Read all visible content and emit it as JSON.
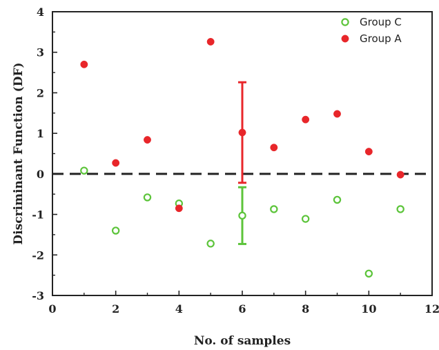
{
  "chart_data": {
    "type": "scatter",
    "title": "",
    "xlabel": "No. of samples",
    "ylabel": "Discriminant Function (DF)",
    "xlim": [
      0,
      12
    ],
    "ylim": [
      -3,
      4
    ],
    "x_ticks": [
      "0",
      "2",
      "4",
      "6",
      "8",
      "10",
      "12"
    ],
    "y_ticks": [
      "-3",
      "-2",
      "-1",
      "0",
      "1",
      "2",
      "3",
      "4"
    ],
    "grid": false,
    "legend_position": "top-right",
    "reference_line": {
      "y": 0,
      "style": "dashed",
      "color": "#222222"
    },
    "series": [
      {
        "name": "Group C",
        "marker": "open-circle",
        "color": "#5cc43a",
        "x": [
          1,
          2,
          3,
          4,
          5,
          6,
          7,
          8,
          9,
          10,
          11
        ],
        "y": [
          0.08,
          -1.4,
          -0.58,
          -0.73,
          -1.72,
          -1.03,
          -0.87,
          -1.11,
          -0.64,
          -2.46,
          -0.87
        ],
        "error_bar": {
          "x": 6,
          "low": -1.73,
          "high": -0.33
        }
      },
      {
        "name": "Group A",
        "marker": "filled-circle",
        "color": "#e8262a",
        "x": [
          1,
          2,
          3,
          4,
          5,
          6,
          7,
          8,
          9,
          10,
          11
        ],
        "y": [
          2.7,
          0.27,
          0.84,
          -0.85,
          3.26,
          1.02,
          0.65,
          1.34,
          1.48,
          0.55,
          -0.02
        ],
        "error_bar": {
          "x": 6,
          "low": -0.22,
          "high": 2.26
        }
      }
    ]
  }
}
